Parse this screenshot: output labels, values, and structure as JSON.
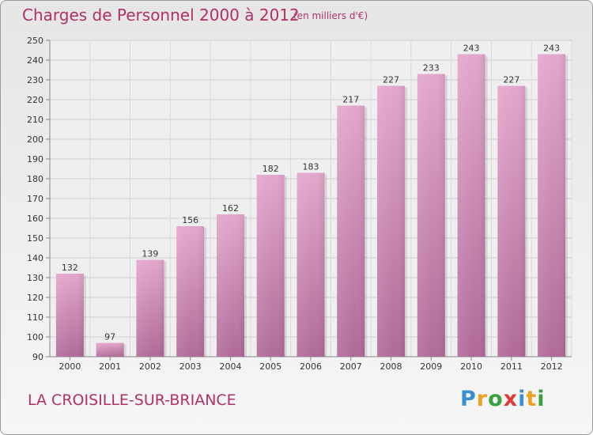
{
  "title": "Charges de Personnel 2000 à 2012",
  "subtitle": "(en milliers d'€)",
  "commune": "LA CROISILLE-SUR-BRIANCE",
  "logo": {
    "letters": [
      "P",
      "r",
      "o",
      "x",
      "i",
      "t",
      "i"
    ],
    "colors": [
      "#3a8fd0",
      "#f0a020",
      "#3aa040",
      "#e03a3a",
      "#3a8fd0",
      "#f0a020",
      "#3aa040"
    ]
  },
  "colors": {
    "bar": "#d98fbd",
    "bar_dark": "#b86a9b",
    "text_accent": "#b0306a"
  },
  "chart_data": {
    "type": "bar",
    "categories": [
      "2000",
      "2001",
      "2002",
      "2003",
      "2004",
      "2005",
      "2006",
      "2007",
      "2008",
      "2009",
      "2010",
      "2011",
      "2012"
    ],
    "values": [
      132,
      97,
      139,
      156,
      162,
      182,
      183,
      217,
      227,
      233,
      243,
      227,
      243
    ],
    "ylim": [
      90,
      250
    ],
    "yticks": [
      90,
      100,
      110,
      120,
      130,
      140,
      150,
      160,
      170,
      180,
      190,
      200,
      210,
      220,
      230,
      240,
      250
    ],
    "grid": true,
    "data_labels": true
  }
}
